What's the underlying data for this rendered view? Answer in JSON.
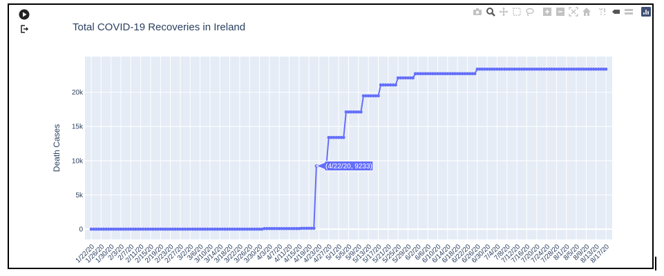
{
  "title": "Total COVID-19 Recoveries in Ireland",
  "colors": {
    "line": "#636efa",
    "plot_bg": "#e5ecf6",
    "grid": "#ffffff",
    "text": "#2a3f5f",
    "modebar": "#c2c2c2",
    "logo": "#3f4f75"
  },
  "sidebar": {
    "icons": [
      "play-icon",
      "logout-icon"
    ]
  },
  "modebar": {
    "icons": [
      "camera-icon",
      "zoom-icon",
      "pan-icon",
      "box-select-icon",
      "lasso-select-icon",
      "zoom-in-icon",
      "zoom-out-icon",
      "autoscale-icon",
      "reset-axes-icon",
      "spike-lines-icon",
      "hover-closest-icon",
      "hover-compare-icon",
      "plotly-logo-icon"
    ]
  },
  "tooltip": {
    "text": "(4/22/20, 9233)"
  },
  "chart_data": {
    "type": "line",
    "title": "Total COVID-19 Recoveries in Ireland",
    "xlabel": "",
    "ylabel": "Death Cases",
    "ylim": [
      -1500,
      25200
    ],
    "yticks": [
      0,
      5000,
      10000,
      15000,
      20000
    ],
    "ytick_labels": [
      "0",
      "5k",
      "10k",
      "15k",
      "20k"
    ],
    "xticks": [
      "1/22/20",
      "1/26/20",
      "1/30/20",
      "2/3/20",
      "2/7/20",
      "2/11/20",
      "2/15/20",
      "2/19/20",
      "2/23/20",
      "2/27/20",
      "3/2/20",
      "3/6/20",
      "3/10/20",
      "3/14/20",
      "3/18/20",
      "3/22/20",
      "3/26/20",
      "3/30/20",
      "4/3/20",
      "4/7/20",
      "4/11/20",
      "4/15/20",
      "4/19/20",
      "4/23/20",
      "4/27/20",
      "5/1/20",
      "5/5/20",
      "5/9/20",
      "5/13/20",
      "5/17/20",
      "5/21/20",
      "5/25/20",
      "5/29/20",
      "6/2/20",
      "6/6/20",
      "6/10/20",
      "6/14/20",
      "6/18/20",
      "6/22/20",
      "6/26/20",
      "6/30/20",
      "7/4/20",
      "7/8/20",
      "7/12/20",
      "7/16/20",
      "7/20/20",
      "7/24/20",
      "7/28/20",
      "8/1/20",
      "8/5/20",
      "8/9/20",
      "8/13/20",
      "8/17/20"
    ],
    "x_start": "1/22/20",
    "x_end": "8/17/20",
    "series": [
      {
        "segments": [
          {
            "from": "1/22/20",
            "to": "3/31/20",
            "value": 0
          },
          {
            "from": "4/1/20",
            "to": "4/15/20",
            "value": 80
          },
          {
            "from": "4/16/20",
            "to": "4/21/20",
            "value": 120
          },
          {
            "from": "4/22/20",
            "to": "4/24/20",
            "value": 9233
          },
          {
            "from": "4/25/20",
            "to": "4/26/20",
            "value": 9233
          },
          {
            "from": "4/27/20",
            "to": "5/3/20",
            "value": 13386
          },
          {
            "from": "5/4/20",
            "to": "5/10/20",
            "value": 17110
          },
          {
            "from": "5/11/20",
            "to": "5/17/20",
            "value": 19470
          },
          {
            "from": "5/18/20",
            "to": "5/24/20",
            "value": 21060
          },
          {
            "from": "5/25/20",
            "to": "5/31/20",
            "value": 22089
          },
          {
            "from": "6/1/20",
            "to": "6/25/20",
            "value": 22698
          },
          {
            "from": "6/26/20",
            "to": "8/17/20",
            "value": 23364
          }
        ]
      }
    ],
    "grid": true,
    "legend": "none"
  }
}
